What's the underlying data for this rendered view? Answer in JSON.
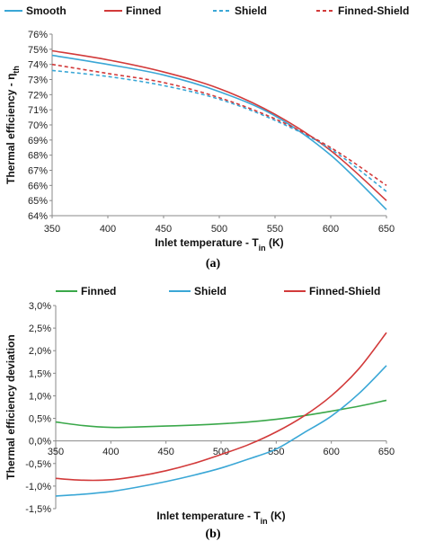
{
  "chart_data": [
    {
      "type": "line",
      "caption": "(a)",
      "xlabel": "Inlet temperature - T",
      "xlabel_sub": "in",
      "xlabel_unit": " (K)",
      "ylabel": "Thermal efficiency - η",
      "ylabel_sub": "th",
      "xlim": [
        350,
        650
      ],
      "ylim": [
        64,
        76
      ],
      "x_ticks": [
        "350",
        "400",
        "450",
        "500",
        "550",
        "600",
        "650"
      ],
      "y_ticks": [
        "64%",
        "65%",
        "66%",
        "67%",
        "68%",
        "69%",
        "70%",
        "71%",
        "72%",
        "73%",
        "74%",
        "75%",
        "76%"
      ],
      "legend_position": "top",
      "grid": false,
      "x": [
        350,
        400,
        450,
        500,
        550,
        600,
        650
      ],
      "series": [
        {
          "name": "Smooth",
          "color": "#3aa7d6",
          "dash": "solid",
          "values": [
            74.6,
            74.0,
            73.3,
            72.2,
            70.6,
            68.0,
            64.4
          ]
        },
        {
          "name": "Finned",
          "color": "#d23a3a",
          "dash": "solid",
          "values": [
            74.9,
            74.3,
            73.5,
            72.4,
            70.7,
            68.3,
            65.0
          ]
        },
        {
          "name": "Shield",
          "color": "#3aa7d6",
          "dash": "dashed",
          "values": [
            73.6,
            73.2,
            72.6,
            71.7,
            70.3,
            68.4,
            65.6
          ]
        },
        {
          "name": "Finned-Shield",
          "color": "#d23a3a",
          "dash": "dashed",
          "values": [
            74.0,
            73.4,
            72.8,
            71.8,
            70.4,
            68.5,
            66.0
          ]
        }
      ]
    },
    {
      "type": "line",
      "caption": "(b)",
      "xlabel": "Inlet temperature - T",
      "xlabel_sub": "in",
      "xlabel_unit": " (K)",
      "ylabel": "Thermal efficiency deviation",
      "xlim": [
        350,
        650
      ],
      "ylim": [
        -1.5,
        3.0
      ],
      "x_ticks": [
        "350",
        "400",
        "450",
        "500",
        "550",
        "600",
        "650"
      ],
      "y_ticks": [
        "-1,5%",
        "-1,0%",
        "-0,5%",
        "0,0%",
        "0,5%",
        "1,0%",
        "1,5%",
        "2,0%",
        "2,5%",
        "3,0%"
      ],
      "legend_position": "top",
      "grid": false,
      "x": [
        350,
        375,
        400,
        425,
        450,
        475,
        500,
        525,
        550,
        575,
        600,
        625,
        650
      ],
      "series": [
        {
          "name": "Finned",
          "color": "#3aa84a",
          "dash": "solid",
          "values": [
            0.42,
            0.34,
            0.3,
            0.31,
            0.33,
            0.35,
            0.38,
            0.42,
            0.48,
            0.56,
            0.66,
            0.77,
            0.9
          ]
        },
        {
          "name": "Shield",
          "color": "#3aa7d6",
          "dash": "solid",
          "values": [
            -1.22,
            -1.18,
            -1.12,
            -1.02,
            -0.9,
            -0.76,
            -0.6,
            -0.4,
            -0.18,
            0.18,
            0.55,
            1.05,
            1.67
          ]
        },
        {
          "name": "Finned-Shield",
          "color": "#d23a3a",
          "dash": "solid",
          "values": [
            -0.83,
            -0.87,
            -0.86,
            -0.78,
            -0.66,
            -0.5,
            -0.3,
            -0.08,
            0.2,
            0.55,
            1.0,
            1.6,
            2.4
          ]
        }
      ]
    }
  ]
}
